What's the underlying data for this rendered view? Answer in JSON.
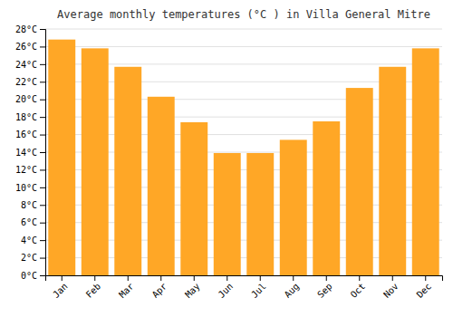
{
  "chart_data": {
    "type": "bar",
    "title": "Average monthly temperatures (°C ) in Villa General Mitre",
    "categories": [
      "Jan",
      "Feb",
      "Mar",
      "Apr",
      "May",
      "Jun",
      "Jul",
      "Aug",
      "Sep",
      "Oct",
      "Nov",
      "Dec"
    ],
    "values": [
      26.8,
      25.8,
      23.7,
      20.3,
      17.4,
      13.9,
      13.9,
      15.4,
      17.5,
      21.3,
      23.7,
      25.8
    ],
    "color": "#FFA726",
    "ylim": [
      0,
      28
    ],
    "yticks": [
      {
        "value": 0,
        "label": "0°C"
      },
      {
        "value": 2,
        "label": "2°C"
      },
      {
        "value": 4,
        "label": "4°C"
      },
      {
        "value": 6,
        "label": "6°C"
      },
      {
        "value": 8,
        "label": "8°C"
      },
      {
        "value": 10,
        "label": "10°C"
      },
      {
        "value": 12,
        "label": "12°C"
      },
      {
        "value": 14,
        "label": "14°C"
      },
      {
        "value": 16,
        "label": "16°C"
      },
      {
        "value": 18,
        "label": "18°C"
      },
      {
        "value": 20,
        "label": "20°C"
      },
      {
        "value": 22,
        "label": "22°C"
      },
      {
        "value": 24,
        "label": "24°C"
      },
      {
        "value": 26,
        "label": "26°C"
      },
      {
        "value": 28,
        "label": "28°C"
      }
    ],
    "grid": true
  }
}
